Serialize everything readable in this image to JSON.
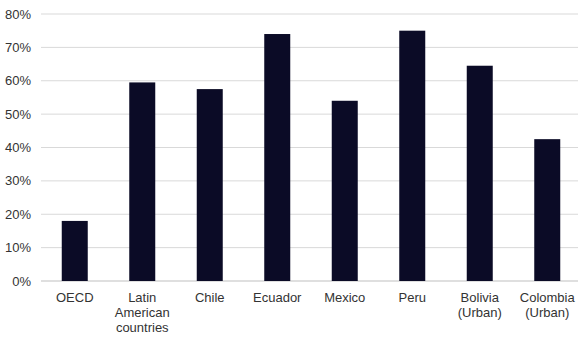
{
  "chart_data": {
    "type": "bar",
    "categories": [
      "OECD",
      "Latin American countries",
      "Chile",
      "Ecuador",
      "Mexico",
      "Peru",
      "Bolivia (Urban)",
      "Colombia (Urban)"
    ],
    "values": [
      18,
      59.5,
      57.5,
      74,
      54,
      75,
      64.5,
      42.5
    ],
    "color": "#0b0b26",
    "ylim": [
      0,
      80
    ],
    "yticks": [
      {
        "value": 0,
        "label": "0%"
      },
      {
        "value": 10,
        "label": "10%"
      },
      {
        "value": 20,
        "label": "20%"
      },
      {
        "value": 30,
        "label": "30%"
      },
      {
        "value": 40,
        "label": "40%"
      },
      {
        "value": 50,
        "label": "50%"
      },
      {
        "value": 60,
        "label": "60%"
      },
      {
        "value": 70,
        "label": "70%"
      },
      {
        "value": 80,
        "label": "80%"
      }
    ],
    "grid": true
  }
}
